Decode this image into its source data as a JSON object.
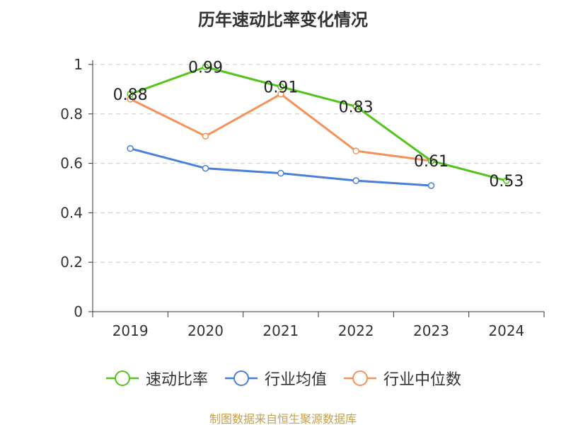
{
  "chart_data": {
    "type": "line",
    "title": "历年速动比率变化情况",
    "categories": [
      "2019",
      "2020",
      "2021",
      "2022",
      "2023",
      "2024"
    ],
    "ylim": [
      0,
      1
    ],
    "yticks": [
      "0",
      "0.2",
      "0.4",
      "0.6",
      "0.8",
      "1"
    ],
    "grid": true,
    "legend_position": "bottom",
    "series": [
      {
        "name": "速动比率",
        "color": "#52c41a",
        "values": [
          0.88,
          0.99,
          0.91,
          0.83,
          0.61,
          0.53
        ],
        "labels": [
          "0.88",
          "0.99",
          "0.91",
          "0.83",
          "0.61",
          "0.53"
        ],
        "show_labels": true
      },
      {
        "name": "行业均值",
        "color": "#4a7fdb",
        "values": [
          0.66,
          0.58,
          0.56,
          0.53,
          0.51,
          null
        ],
        "show_labels": false
      },
      {
        "name": "行业中位数",
        "color": "#f5925a",
        "values": [
          0.86,
          0.71,
          0.88,
          0.65,
          0.61,
          null
        ],
        "show_labels": false
      }
    ]
  },
  "source_note": "制图数据来自恒生聚源数据库"
}
